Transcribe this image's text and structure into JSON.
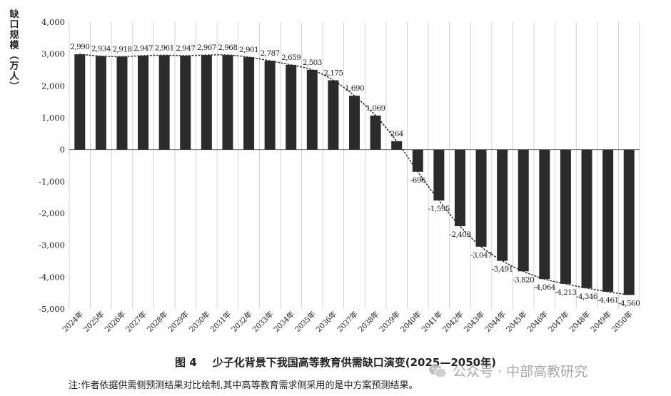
{
  "chart_data": {
    "type": "bar",
    "ylabel": "缺口规模（万人）",
    "ylim": [
      -5000,
      4000
    ],
    "yticks": [
      4000,
      3000,
      2000,
      1000,
      0,
      -1000,
      -2000,
      -3000,
      -4000,
      -5000
    ],
    "ytick_labels": [
      "4,000",
      "3,000",
      "2,000",
      "1,000",
      "0",
      "-1,000",
      "-2,000",
      "-3,000",
      "-4,000",
      "-5,000"
    ],
    "grid": "vertical",
    "trendline": "dotted",
    "categories": [
      "2024年",
      "2025年",
      "2026年",
      "2027年",
      "2028年",
      "2029年",
      "2030年",
      "2031年",
      "2032年",
      "2033年",
      "2034年",
      "2035年",
      "2036年",
      "2037年",
      "2038年",
      "2039年",
      "2040年",
      "2041年",
      "2042年",
      "2043年",
      "2044年",
      "2045年",
      "2046年",
      "2047年",
      "2048年",
      "2049年",
      "2050年"
    ],
    "values": [
      2990,
      2934,
      2918,
      2947,
      2961,
      2947,
      2967,
      2968,
      2901,
      2787,
      2659,
      2503,
      2175,
      1690,
      1069,
      264,
      -696,
      -1595,
      -2403,
      -3047,
      -3491,
      -3820,
      -4064,
      -4213,
      -4346,
      -4461,
      -4560
    ],
    "labels": [
      "2,990",
      "2,934",
      "2,918",
      "2,947",
      "2,961",
      "2,947",
      "2,967",
      "2,968",
      "2,901",
      "2,787",
      "2,659",
      "2,503",
      "2,175",
      "1,690",
      "1,069",
      "264",
      "-696",
      "-1,595",
      "-2,403",
      "-3,047",
      "-3,491",
      "-3,820",
      "-4,064",
      "-4,213",
      "-4,346",
      "-4,461",
      "-4,560"
    ],
    "bar_color": "#2b2b2b"
  },
  "caption": {
    "figure_label": "图 4",
    "title": "少子化背景下我国高等教育供需缺口演变(2025—2050年)"
  },
  "note": "注:作者依据供需侧预测结果对比绘制,其中高等教育需求侧采用的是中方案预测结果。",
  "watermark": {
    "text": "公众号 · 中部高教研究",
    "icon": "wechat-icon"
  }
}
